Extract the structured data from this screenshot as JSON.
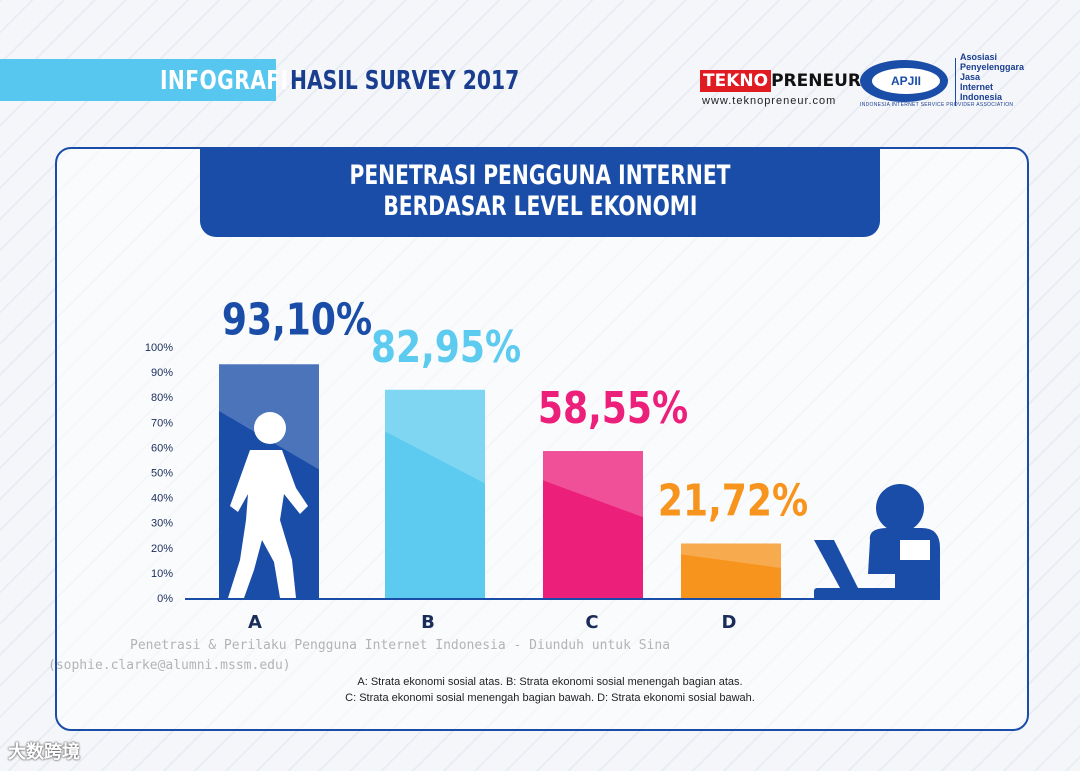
{
  "header": {
    "left_label": "INFOGRAFIS",
    "title": "HASIL SURVEY 2017"
  },
  "logos": {
    "tekno_red": "TEKNO",
    "tekno_black": "PRENEUR",
    "tekno_url": "www.teknopreneur.com",
    "apjii_name": "APJII",
    "apjii_lines": [
      "Asosiasi",
      "Penyelenggara",
      "Jasa",
      "Internet",
      "Indonesia"
    ],
    "apjii_sub": "INDONESIA INTERNET SERVICE PROVIDER ASSOCIATION"
  },
  "chart_data": {
    "type": "bar",
    "title_line1": "PENETRASI PENGGUNA INTERNET",
    "title_line2": "BERDASAR LEVEL EKONOMI",
    "categories": [
      "A",
      "B",
      "C",
      "D"
    ],
    "values": [
      93.1,
      82.95,
      58.55,
      21.72
    ],
    "value_labels": [
      "93,10%",
      "82,95%",
      "58,55%",
      "21,72%"
    ],
    "colors": [
      "#1a4da8",
      "#5ccbef",
      "#ec1f7a",
      "#f7941d"
    ],
    "yticks": [
      "0%",
      "10%",
      "20%",
      "30%",
      "40%",
      "50%",
      "60%",
      "70%",
      "80%",
      "90%",
      "100%"
    ],
    "ylim": [
      0,
      100
    ]
  },
  "footnote": {
    "line1": "A: Strata ekonomi sosial atas. B: Strata ekonomi sosial menengah bagian atas.",
    "line2": "C: Strata ekonomi sosial menengah bagian bawah. D: Strata ekonomi sosial bawah."
  },
  "watermark": {
    "line1": "Penetrasi & Perilaku Pengguna Internet Indonesia - Diunduh untuk Sina",
    "line2": "(sophie.clarke@alumni.mssm.edu)"
  },
  "corner_logo": "大数跨境"
}
